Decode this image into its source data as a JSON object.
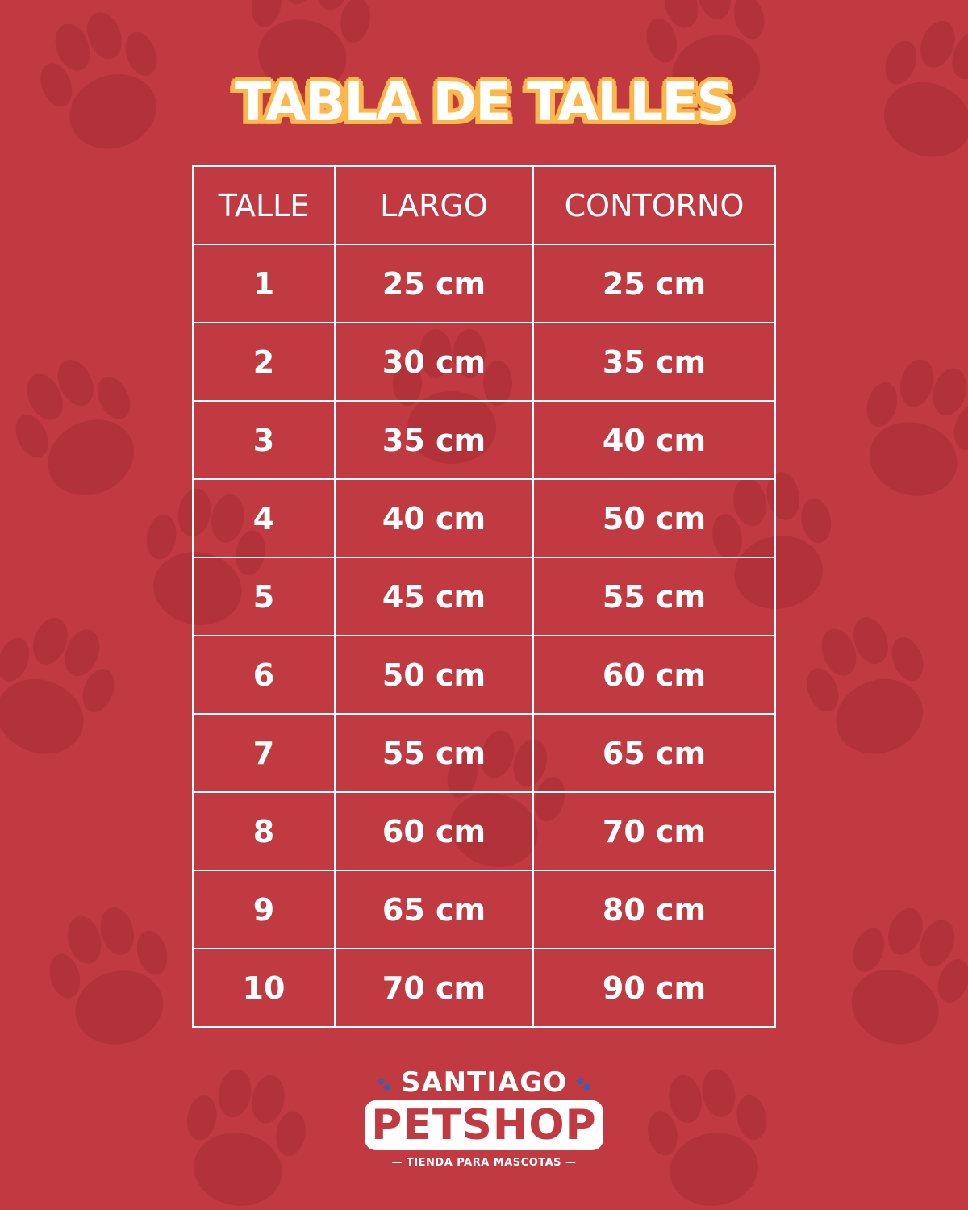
{
  "title": "TABLA DE TALLES",
  "table": {
    "headers": [
      "TALLE",
      "LARGO",
      "CONTORNO"
    ],
    "rows": [
      [
        "1",
        "25 cm",
        "25 cm"
      ],
      [
        "2",
        "30 cm",
        "35 cm"
      ],
      [
        "3",
        "35 cm",
        "40 cm"
      ],
      [
        "4",
        "40 cm",
        "50 cm"
      ],
      [
        "5",
        "45 cm",
        "55 cm"
      ],
      [
        "6",
        "50 cm",
        "60 cm"
      ],
      [
        "7",
        "55 cm",
        "65 cm"
      ],
      [
        "8",
        "60 cm",
        "70 cm"
      ],
      [
        "9",
        "65 cm",
        "80 cm"
      ],
      [
        "10",
        "70 cm",
        "90 cm"
      ]
    ]
  },
  "logo": {
    "line1": "SANTIAGO",
    "line2": "PETSHOP",
    "tagline": "— TIENDA PARA MASCOTAS —"
  },
  "colors": {
    "background": "#c23a41",
    "paw": "#b3323a",
    "title_outline": "#fbb84d",
    "text": "#ffffff"
  },
  "decoration_icon": "paw-print-icon"
}
